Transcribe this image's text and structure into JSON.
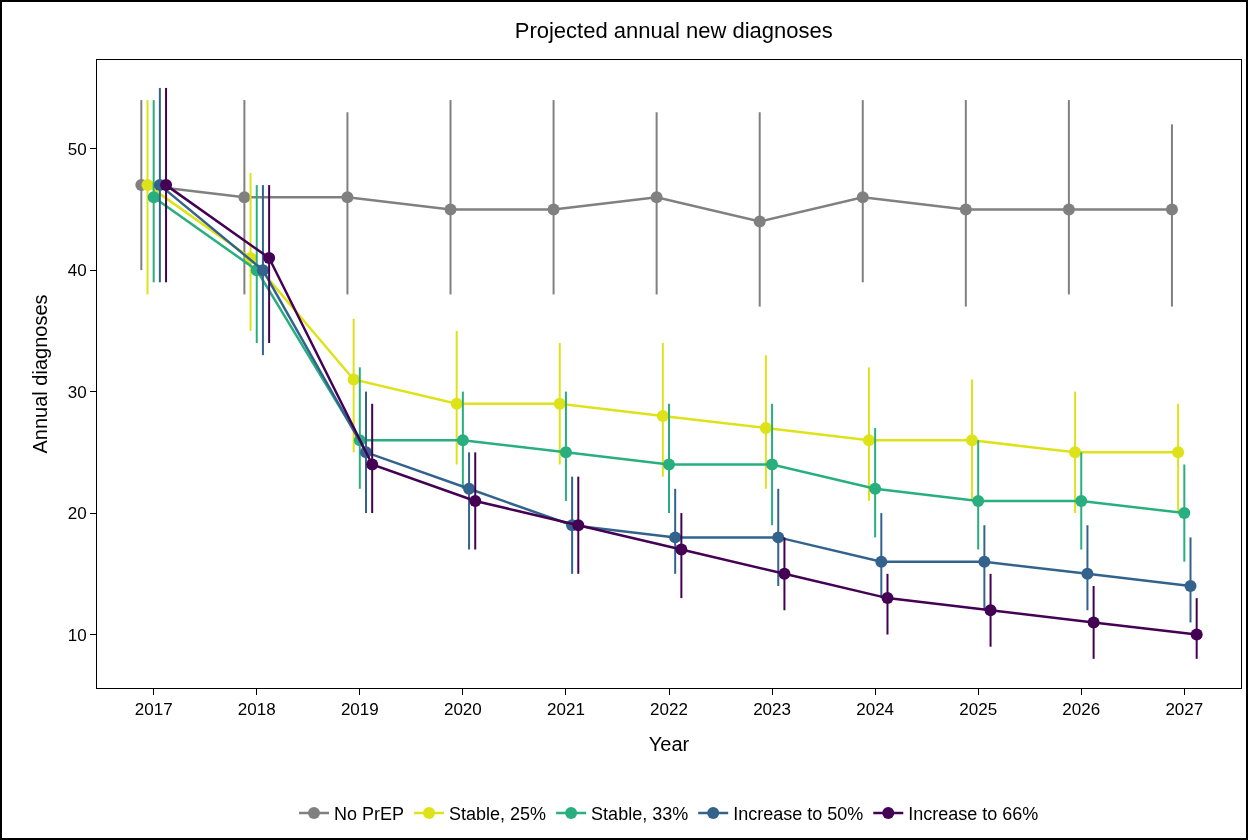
{
  "chart_data": {
    "type": "line",
    "title": "Projected annual new diagnoses",
    "xlabel": "Year",
    "ylabel": "Annual diagnoses",
    "categories": [
      "2017",
      "2018",
      "2019",
      "2020",
      "2021",
      "2022",
      "2023",
      "2024",
      "2025",
      "2026",
      "2027"
    ],
    "ylim": [
      5.6,
      57.3
    ],
    "yticks": [
      10,
      20,
      30,
      40,
      50
    ],
    "grid": false,
    "legend": "bottom",
    "marker": "circle",
    "line_style": "solid",
    "series": [
      {
        "name": "No PrEP",
        "color": "#808080",
        "values": [
          47,
          46,
          46,
          45,
          45,
          46,
          44,
          46,
          45,
          45,
          45
        ],
        "errors": [
          [
            40,
            54
          ],
          [
            38,
            54
          ],
          [
            38,
            53
          ],
          [
            38,
            54
          ],
          [
            38,
            54
          ],
          [
            38,
            53
          ],
          [
            37,
            53
          ],
          [
            39,
            54
          ],
          [
            37,
            54
          ],
          [
            38,
            54
          ],
          [
            37,
            52
          ]
        ]
      },
      {
        "name": "Stable, 25%",
        "color": "#dde318",
        "values": [
          47,
          41,
          31,
          29,
          29,
          28,
          27,
          26,
          26,
          25,
          25
        ],
        "errors": [
          [
            38,
            54
          ],
          [
            35,
            48
          ],
          [
            25,
            36
          ],
          [
            24,
            35
          ],
          [
            24,
            34
          ],
          [
            23,
            34
          ],
          [
            22,
            33
          ],
          [
            21,
            32
          ],
          [
            21,
            31
          ],
          [
            20,
            30
          ],
          [
            20,
            29
          ]
        ]
      },
      {
        "name": "Stable, 33%",
        "color": "#29af7f",
        "values": [
          46,
          40,
          26,
          26,
          25,
          24,
          24,
          22,
          21,
          21,
          20
        ],
        "errors": [
          [
            39,
            54
          ],
          [
            34,
            47
          ],
          [
            22,
            32
          ],
          [
            22,
            30
          ],
          [
            21,
            30
          ],
          [
            20,
            29
          ],
          [
            19,
            29
          ],
          [
            18,
            27
          ],
          [
            17,
            26
          ],
          [
            17,
            25
          ],
          [
            16,
            24
          ]
        ]
      },
      {
        "name": "Increase to 50%",
        "color": "#33638d",
        "values": [
          47,
          40,
          25,
          22,
          19,
          18,
          18,
          16,
          16,
          15,
          14
        ],
        "errors": [
          [
            39,
            55
          ],
          [
            33,
            47
          ],
          [
            20,
            30
          ],
          [
            17,
            25
          ],
          [
            15,
            23
          ],
          [
            15,
            22
          ],
          [
            14,
            22
          ],
          [
            13,
            20
          ],
          [
            12,
            19
          ],
          [
            12,
            19
          ],
          [
            11,
            18
          ]
        ]
      },
      {
        "name": "Increase to 66%",
        "color": "#440154",
        "values": [
          47,
          41,
          24,
          21,
          19,
          17,
          15,
          13,
          12,
          11,
          10
        ],
        "errors": [
          [
            39,
            55
          ],
          [
            34,
            47
          ],
          [
            20,
            29
          ],
          [
            17,
            25
          ],
          [
            15,
            23
          ],
          [
            13,
            20
          ],
          [
            12,
            18
          ],
          [
            10,
            15
          ],
          [
            9,
            15
          ],
          [
            8,
            14
          ],
          [
            8,
            13
          ]
        ]
      }
    ]
  }
}
